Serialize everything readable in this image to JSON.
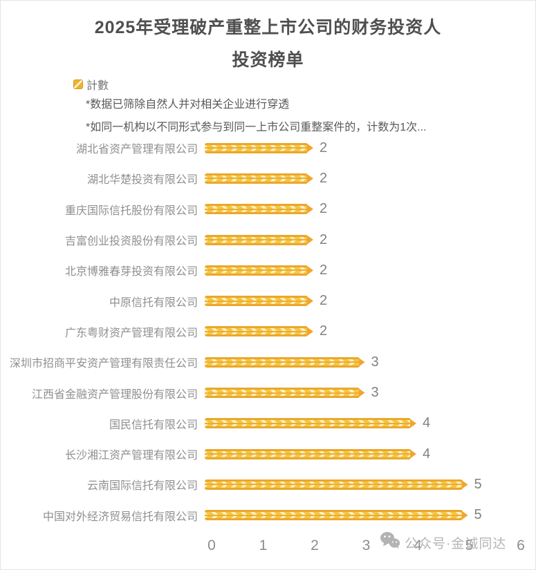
{
  "title": {
    "line1": "2025年受理破产重整上市公司的财务投资人",
    "line2": "投资榜单"
  },
  "legend": {
    "label": "計數",
    "swatch_color": "#F0B32E"
  },
  "notes": [
    "*数据已筛除自然人并对相关企业进行穿透",
    "*如同一机构以不同形式参与到同一上市公司重整案件的，计数为1次..."
  ],
  "watermark": {
    "icon": "wechat-icon",
    "text": "公众号·金诚同达"
  },
  "chart_data": {
    "type": "bar",
    "orientation": "horizontal",
    "title": "2025年受理破产重整上市公司的财务投资人投资榜单",
    "series_name": "計數",
    "categories": [
      "湖北省资产管理有限公司",
      "湖北华楚投资有限公司",
      "重庆国际信托股份有限公司",
      "吉富创业投资股份有限公司",
      "北京博雅春芽投资有限公司",
      "中原信托有限公司",
      "广东粤财资产管理有限公司",
      "深圳市招商平安资产管理有限责任公司",
      "江西省金融资产管理股份有限公司",
      "国民信托有限公司",
      "长沙湘江资产管理有限公司",
      "云南国际信托有限公司",
      "中国对外经济贸易信托有限公司"
    ],
    "values": [
      2,
      2,
      2,
      2,
      2,
      2,
      2,
      3,
      3,
      4,
      4,
      5,
      5
    ],
    "xlim": [
      0,
      6
    ],
    "x_ticks": [
      0,
      1,
      2,
      3,
      4,
      5,
      6
    ],
    "grid": false,
    "legend_position": "top-left",
    "bar_color": "#F6C644",
    "bar_stripe_color": "#FCF1C4",
    "bar_border_color": "#EBA72A",
    "bar_tip_color": "#F1A52F"
  }
}
